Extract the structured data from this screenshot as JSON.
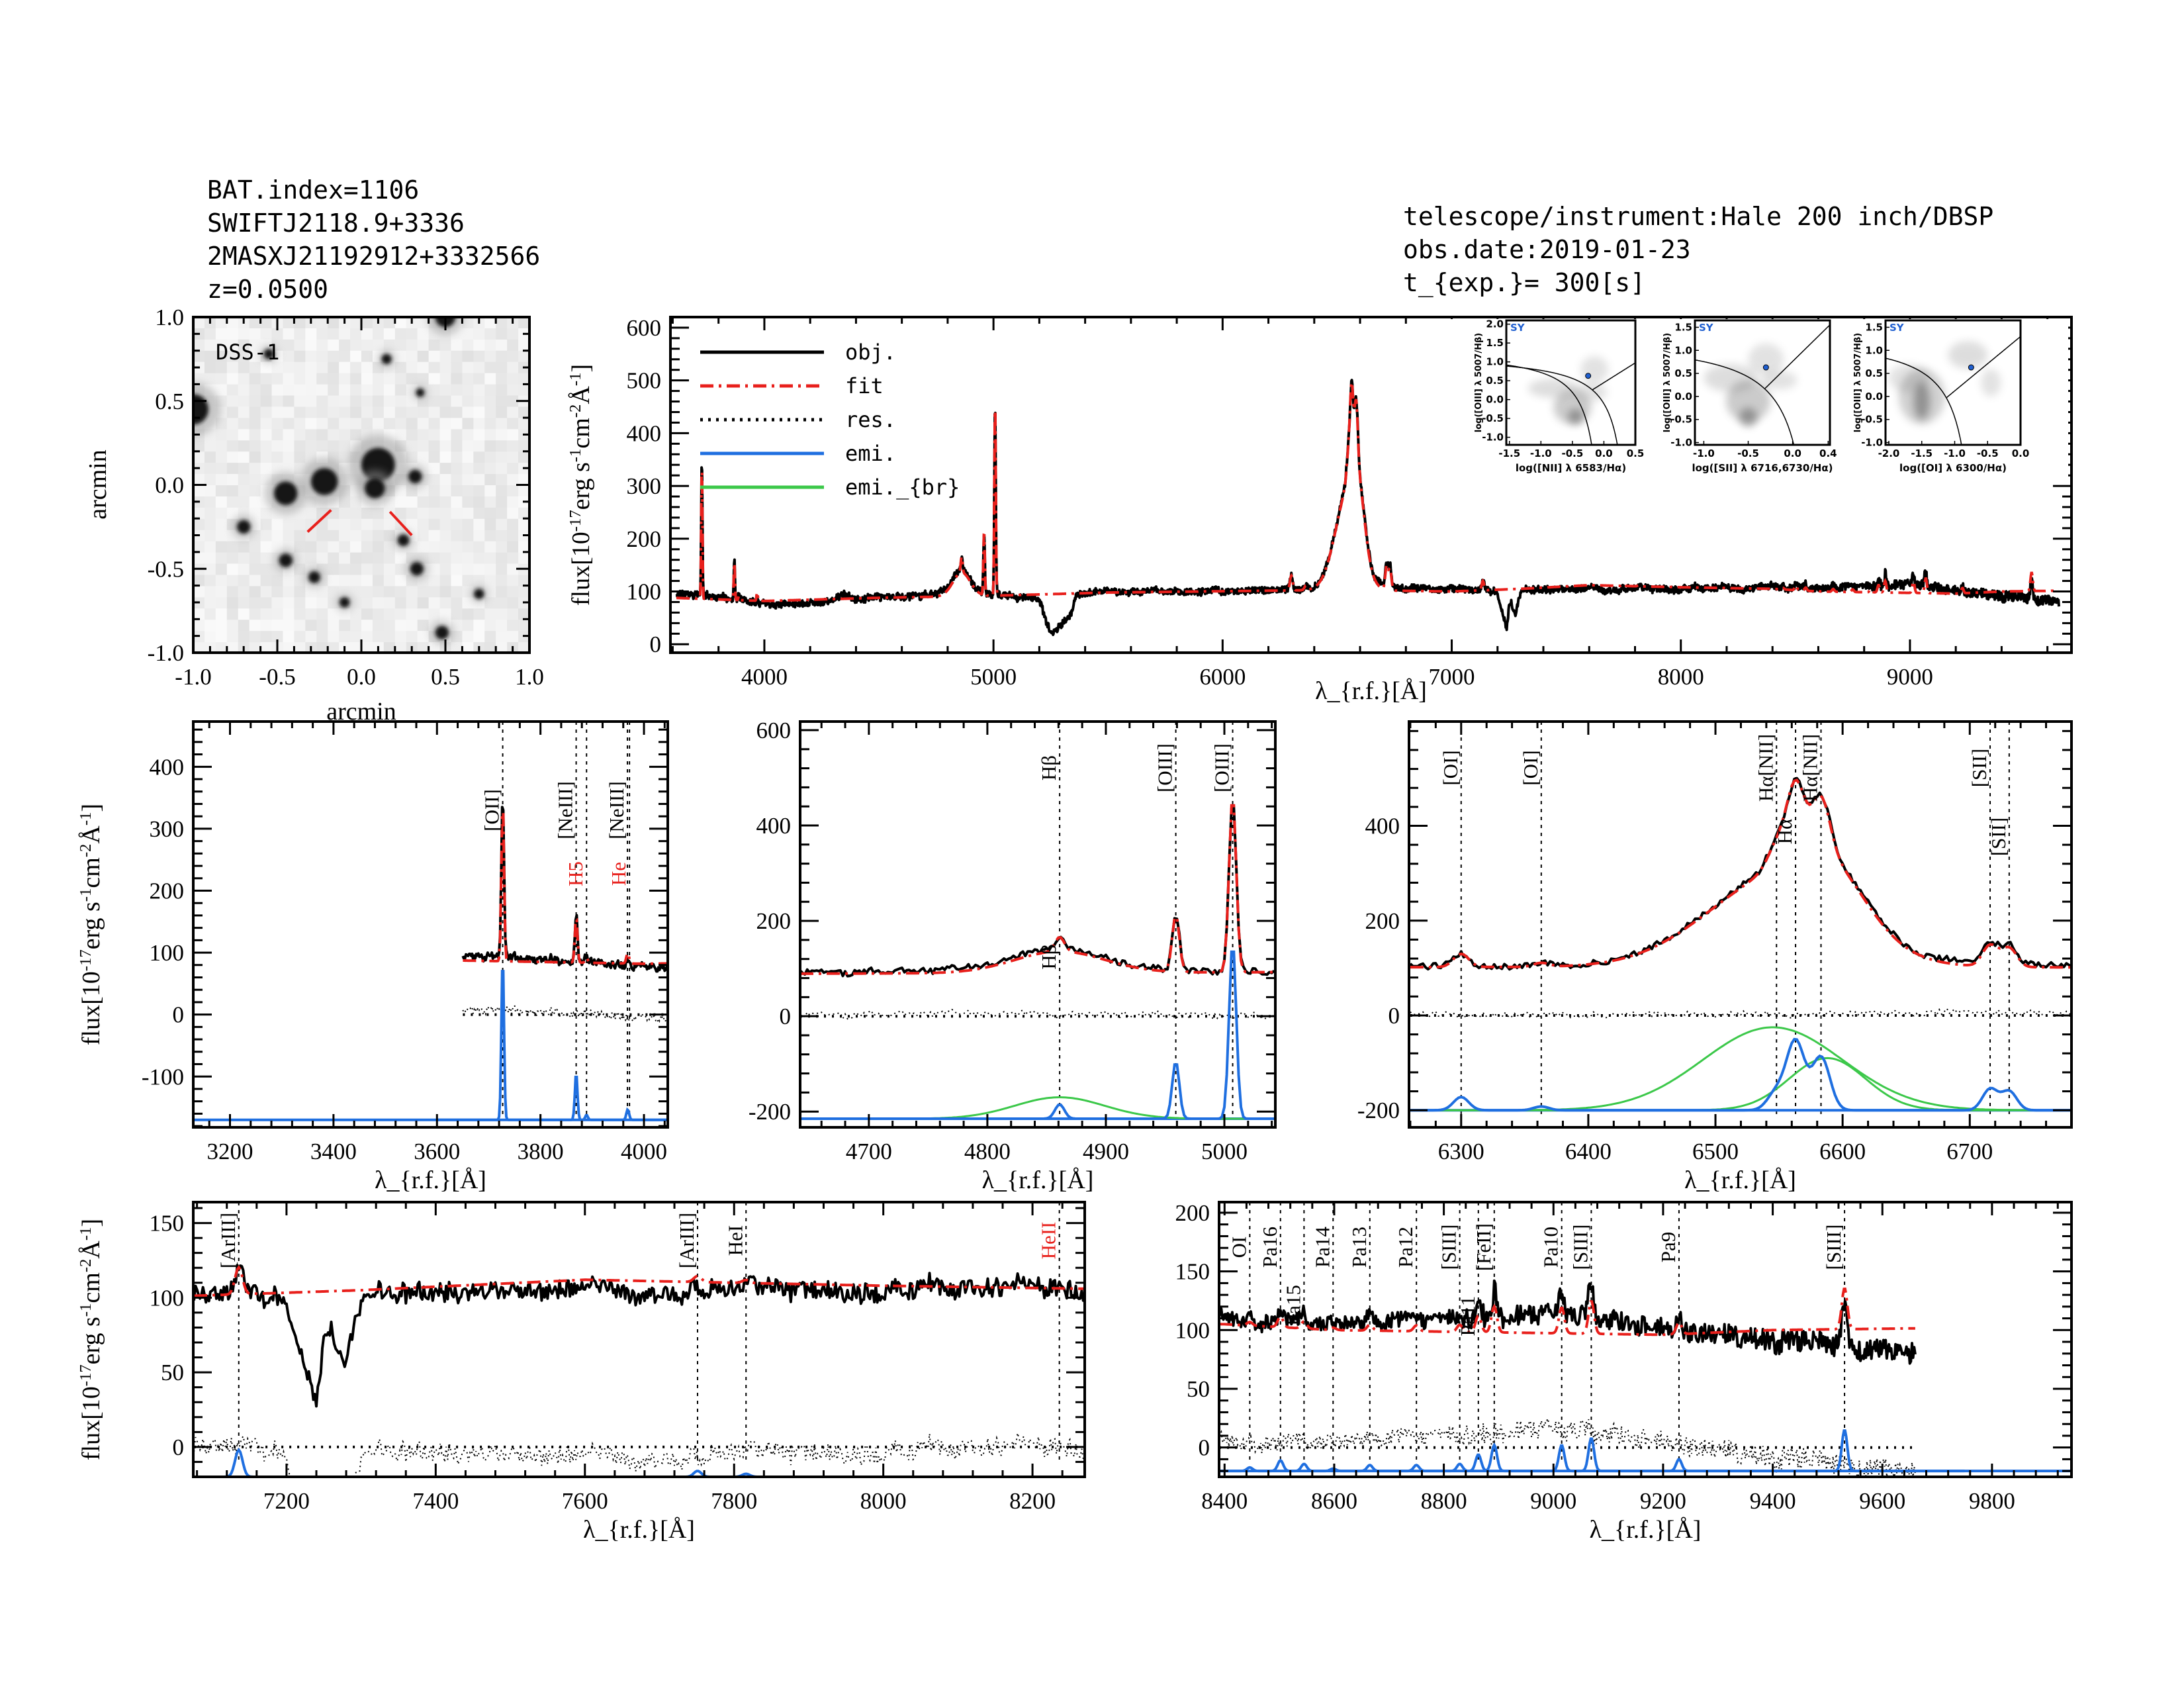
{
  "header": {
    "left": [
      "BAT.index=1106",
      "SWIFTJ2118.9+3336",
      "2MASXJ21192912+3332566",
      "z=0.0500"
    ],
    "right": [
      "telescope/instrument:Hale 200 inch/DBSP",
      "obs.date:2019-01-23",
      "t_{exp.}= 300[s]"
    ]
  },
  "colors": {
    "obj": "#000000",
    "fit": "#e8201c",
    "res": "#000000",
    "emi": "#1f6fe0",
    "emi_br": "#3cc84a",
    "label_red": "#e8201c",
    "bpt_point": "#1f5fd0"
  },
  "legend": [
    {
      "label": "obj.",
      "series": "obj",
      "style": "solid"
    },
    {
      "label": "fit",
      "series": "fit",
      "style": "dash-dot"
    },
    {
      "label": "res.",
      "series": "res",
      "style": "dotted"
    },
    {
      "label": "emi.",
      "series": "emi",
      "style": "solid"
    },
    {
      "label": "emi._{br}",
      "series": "emi_br",
      "style": "solid"
    }
  ],
  "dss": {
    "label": "DSS-1",
    "xlabel": "arcmin",
    "ylabel": "arcmin",
    "xlim": [
      -1.0,
      1.0
    ],
    "ylim": [
      -1.0,
      1.0
    ],
    "ticks": [
      "-1.0",
      "-0.5",
      "0.0",
      "0.5",
      "1.0"
    ],
    "sources": [
      [
        -1.0,
        0.45,
        0.09
      ],
      [
        -0.45,
        -0.05,
        0.07
      ],
      [
        -0.22,
        0.02,
        0.08
      ],
      [
        0.1,
        0.12,
        0.1
      ],
      [
        0.08,
        -0.02,
        0.06
      ],
      [
        0.5,
        1.0,
        0.06
      ],
      [
        -0.7,
        -0.25,
        0.04
      ],
      [
        -0.45,
        -0.45,
        0.04
      ],
      [
        -0.28,
        -0.55,
        0.035
      ],
      [
        0.33,
        -0.5,
        0.04
      ],
      [
        0.25,
        -0.33,
        0.035
      ],
      [
        0.48,
        -0.88,
        0.04
      ],
      [
        0.32,
        0.05,
        0.04
      ],
      [
        0.15,
        0.75,
        0.03
      ],
      [
        -0.55,
        0.78,
        0.03
      ],
      [
        0.7,
        -0.65,
        0.03
      ],
      [
        -0.1,
        -0.7,
        0.03
      ],
      [
        0.35,
        0.55,
        0.025
      ]
    ],
    "markers": [
      [
        [
          -0.32,
          -0.28
        ],
        [
          -0.18,
          -0.15
        ]
      ],
      [
        [
          0.17,
          -0.16
        ],
        [
          0.3,
          -0.3
        ]
      ]
    ]
  },
  "chart_data": {
    "type": "line",
    "continuum_obj": [
      [
        3600,
        95
      ],
      [
        3700,
        95
      ],
      [
        3800,
        90
      ],
      [
        3900,
        85
      ],
      [
        4000,
        80
      ],
      [
        4100,
        78
      ],
      [
        4300,
        82
      ],
      [
        4340,
        95
      ],
      [
        4400,
        85
      ],
      [
        4600,
        90
      ],
      [
        4700,
        95
      ],
      [
        4800,
        95
      ],
      [
        4900,
        95
      ],
      [
        5000,
        93
      ],
      [
        5100,
        90
      ],
      [
        5200,
        88
      ],
      [
        5230,
        40
      ],
      [
        5260,
        20
      ],
      [
        5300,
        40
      ],
      [
        5340,
        55
      ],
      [
        5360,
        95
      ],
      [
        5500,
        100
      ],
      [
        6000,
        100
      ],
      [
        6300,
        103
      ],
      [
        6450,
        106
      ],
      [
        6700,
        106
      ],
      [
        7000,
        106
      ],
      [
        7200,
        100
      ],
      [
        7220,
        60
      ],
      [
        7240,
        30
      ],
      [
        7250,
        70
      ],
      [
        7260,
        80
      ],
      [
        7275,
        55
      ],
      [
        7300,
        100
      ],
      [
        7600,
        105
      ],
      [
        8000,
        105
      ],
      [
        8400,
        108
      ],
      [
        8600,
        105
      ],
      [
        8800,
        110
      ],
      [
        9000,
        112
      ],
      [
        9150,
        105
      ],
      [
        9300,
        98
      ],
      [
        9400,
        90
      ],
      [
        9500,
        88
      ],
      [
        9600,
        85
      ],
      [
        9660,
        80
      ],
      [
        9750,
        80
      ]
    ],
    "continuum_fit": [
      [
        3600,
        88
      ],
      [
        4000,
        82
      ],
      [
        4500,
        88
      ],
      [
        5000,
        92
      ],
      [
        5500,
        98
      ],
      [
        6500,
        103
      ],
      [
        7000,
        100
      ],
      [
        7300,
        105
      ],
      [
        7600,
        112
      ],
      [
        8000,
        108
      ],
      [
        8400,
        105
      ],
      [
        8600,
        100
      ],
      [
        8900,
        98
      ],
      [
        9200,
        96
      ],
      [
        9400,
        100
      ],
      [
        9750,
        102
      ]
    ],
    "lines": [
      {
        "name": "[OII]",
        "wave": 3727,
        "amp": 260,
        "sigma": 2.5
      },
      {
        "name": "[NeIII]",
        "wave": 3869,
        "amp": 75,
        "sigma": 2.5
      },
      {
        "name": "H5",
        "wave": 3889,
        "amp": 8,
        "sigma": 2.5
      },
      {
        "name": "[NeIII]",
        "wave": 3968,
        "amp": 12,
        "sigma": 2.5
      },
      {
        "name": "He",
        "wave": 3970,
        "amp": 6,
        "sigma": 2.5
      },
      {
        "name": "Hβ",
        "wave": 4861,
        "amp": 30,
        "sigma": 4
      },
      {
        "name": "[OIII]",
        "wave": 4959,
        "amp": 120,
        "sigma": 3
      },
      {
        "name": "[OIII]",
        "wave": 5007,
        "amp": 370,
        "sigma": 3
      },
      {
        "name": "[OI]",
        "wave": 6300,
        "amp": 28,
        "sigma": 6
      },
      {
        "name": "[OI]",
        "wave": 6363,
        "amp": 8,
        "sigma": 6
      },
      {
        "name": "[NII]",
        "wave": 6548,
        "amp": 38,
        "sigma": 7
      },
      {
        "name": "Hα",
        "wave": 6563,
        "amp": 145,
        "sigma": 7
      },
      {
        "name": "[NII]",
        "wave": 6583,
        "amp": 112,
        "sigma": 7
      },
      {
        "name": "[SII]",
        "wave": 6716,
        "amp": 45,
        "sigma": 6
      },
      {
        "name": "[SII]",
        "wave": 6731,
        "amp": 40,
        "sigma": 6
      },
      {
        "name": "[ArIII]",
        "wave": 7136,
        "amp": 18,
        "sigma": 5
      },
      {
        "name": "[ArIII]",
        "wave": 7751,
        "amp": 4,
        "sigma": 5
      },
      {
        "name": "HeI",
        "wave": 7816,
        "amp": 2,
        "sigma": 5
      },
      {
        "name": "OI",
        "wave": 8446,
        "amp": 3,
        "sigma": 5
      },
      {
        "name": "Pa16",
        "wave": 8502,
        "amp": 9,
        "sigma": 5
      },
      {
        "name": "Pa15",
        "wave": 8545,
        "amp": 6,
        "sigma": 5
      },
      {
        "name": "Pa14",
        "wave": 8598,
        "amp": 2,
        "sigma": 5
      },
      {
        "name": "Pa13",
        "wave": 8665,
        "amp": 5,
        "sigma": 5
      },
      {
        "name": "Pa12",
        "wave": 8750,
        "amp": 5,
        "sigma": 5
      },
      {
        "name": "[SIII]",
        "wave": 8829,
        "amp": 6,
        "sigma": 5
      },
      {
        "name": "Pa11",
        "wave": 8863,
        "amp": 14,
        "sigma": 5
      },
      {
        "name": "[FeII]",
        "wave": 8892,
        "amp": 22,
        "sigma": 5
      },
      {
        "name": "Pa10",
        "wave": 9015,
        "amp": 22,
        "sigma": 5
      },
      {
        "name": "[SIII]",
        "wave": 9069,
        "amp": 28,
        "sigma": 5
      },
      {
        "name": "Pa9",
        "wave": 9229,
        "amp": 10,
        "sigma": 5
      },
      {
        "name": "[SIII]",
        "wave": 9531,
        "amp": 35,
        "sigma": 5
      }
    ],
    "broad_lines": [
      {
        "name": "Hβ",
        "wave": 4861,
        "amp": 45,
        "sigma": 38
      },
      {
        "name": "Hα",
        "wave": 6545,
        "amp": 175,
        "sigma": 55
      },
      {
        "name": "Hα",
        "wave": 6588,
        "amp": 110,
        "sigma": 30
      }
    ],
    "panels": [
      {
        "id": "overview",
        "xlim": [
          3590,
          9705
        ],
        "ylim": [
          -16,
          620
        ],
        "xticks": [
          4000,
          5000,
          6000,
          7000,
          8000,
          9000
        ],
        "yticks": [
          0,
          100,
          200,
          300,
          400,
          500,
          600
        ],
        "obj_range": [
          3615,
          9650
        ],
        "show_res": false,
        "show_emi": false,
        "xlabel": "λ_{r.f.}[Å]",
        "ylabel": "flux[10^{-17}erg s^{-1}cm^{-2}Å^{-1}]",
        "line_labels": []
      },
      {
        "id": "oii",
        "xlim": [
          3129,
          4046
        ],
        "ylim": [
          -182,
          473
        ],
        "xticks": [
          3200,
          3400,
          3600,
          3800,
          4000
        ],
        "yticks": [
          -100,
          0,
          100,
          200,
          300,
          400
        ],
        "obj_range": [
          3650,
          4046
        ],
        "show_res": true,
        "show_emi": true,
        "emi_offset": -170,
        "xlabel": "λ_{r.f.}[Å]",
        "ylabel": "flux[10^{-17}erg s^{-1}cm^{-2}Å^{-1}]",
        "line_labels": [
          {
            "text": "[OII]",
            "wave": 3727
          },
          {
            "text": "[NeIII]",
            "wave": 3869
          },
          {
            "text": "H5",
            "wave": 3889,
            "red": true
          },
          {
            "text": "[NeIII]",
            "wave": 3968
          },
          {
            "text": "He",
            "wave": 3972,
            "red": true
          }
        ]
      },
      {
        "id": "hbeta",
        "xlim": [
          4642,
          5043
        ],
        "ylim": [
          -233,
          618
        ],
        "xticks": [
          4700,
          4800,
          4900,
          5000
        ],
        "yticks": [
          -200,
          0,
          200,
          400,
          600
        ],
        "obj_range": [
          4642,
          5043
        ],
        "show_res": true,
        "show_emi": true,
        "emi_offset": -215,
        "xlabel": "λ_{r.f.}[Å]",
        "ylabel": "",
        "line_labels": [
          {
            "text": "Hβ",
            "wave": 4861
          },
          {
            "text": "Hβ",
            "wave": 4861,
            "low": true
          },
          {
            "text": "[OIII]",
            "wave": 4959
          },
          {
            "text": "[OIII]",
            "wave": 5007
          }
        ]
      },
      {
        "id": "halpha",
        "xlim": [
          6259,
          6780
        ],
        "ylim": [
          -236,
          620
        ],
        "xticks": [
          6300,
          6400,
          6500,
          6600,
          6700
        ],
        "yticks": [
          -200,
          0,
          200,
          400
        ],
        "obj_range": [
          6259,
          6780
        ],
        "show_res": true,
        "show_emi": true,
        "emi_offset": -200,
        "xlabel": "λ_{r.f.}[Å]",
        "ylabel": "",
        "line_labels": [
          {
            "text": "[OI]",
            "wave": 6300
          },
          {
            "text": "[OI]",
            "wave": 6363
          },
          {
            "text": "Hα[NII]",
            "wave": 6548
          },
          {
            "text": "Hα",
            "wave": 6563
          },
          {
            "text": "Hα[NII]",
            "wave": 6583
          },
          {
            "text": "[SII]",
            "wave": 6716
          },
          {
            "text": "[SII]",
            "wave": 6731
          }
        ]
      },
      {
        "id": "red1",
        "xlim": [
          7075,
          8270
        ],
        "ylim": [
          -20,
          164
        ],
        "xticks": [
          7200,
          7400,
          7600,
          7800,
          8000,
          8200
        ],
        "yticks": [
          0,
          50,
          100,
          150
        ],
        "obj_range": [
          7075,
          8270
        ],
        "show_res": true,
        "show_emi": true,
        "emi_offset": -20,
        "xlabel": "λ_{r.f.}[Å]",
        "ylabel": "flux[10^{-17}erg s^{-1}cm^{-2}Å^{-1}]",
        "line_labels": [
          {
            "text": "[ArIII]",
            "wave": 7136
          },
          {
            "text": "[ArIII]",
            "wave": 7751
          },
          {
            "text": "HeI",
            "wave": 7816
          },
          {
            "text": "HeII",
            "wave": 8236,
            "red": true
          }
        ]
      },
      {
        "id": "red2",
        "xlim": [
          8390,
          9945
        ],
        "ylim": [
          -25,
          209
        ],
        "xticks": [
          8400,
          8600,
          8800,
          9000,
          9200,
          9400,
          9600,
          9800
        ],
        "yticks": [
          0,
          50,
          100,
          150,
          200
        ],
        "obj_range": [
          8390,
          9660
        ],
        "show_res": true,
        "show_emi": true,
        "emi_offset": -20,
        "xlabel": "λ_{r.f.}[Å]",
        "ylabel": "",
        "line_labels": [
          {
            "text": "OI",
            "wave": 8446
          },
          {
            "text": "Pa16",
            "wave": 8502
          },
          {
            "text": "Pa15",
            "wave": 8545
          },
          {
            "text": "Pa14",
            "wave": 8598
          },
          {
            "text": "Pa13",
            "wave": 8665
          },
          {
            "text": "Pa12",
            "wave": 8750
          },
          {
            "text": "[SIII]",
            "wave": 8829
          },
          {
            "text": "Pa11",
            "wave": 8863
          },
          {
            "text": "[FeII]",
            "wave": 8892
          },
          {
            "text": "Pa10",
            "wave": 9015
          },
          {
            "text": "[SIII]",
            "wave": 9069
          },
          {
            "text": "Pa9",
            "wave": 9229
          },
          {
            "text": "[SIII]",
            "wave": 9531
          }
        ]
      }
    ],
    "bpt": [
      {
        "class": "SY",
        "xlabel": "log([NII] λ 6583/Hα)",
        "ylabel": "log([OIII] λ 5007/Hβ)",
        "xlim": [
          -1.55,
          0.5
        ],
        "ylim": [
          -1.2,
          2.1
        ],
        "xticks": [
          -1.5,
          -1.0,
          -0.5,
          0.0,
          0.5
        ],
        "yticks": [
          -1.0,
          -0.5,
          0.0,
          0.5,
          1.0,
          1.5,
          2.0
        ],
        "point": [
          -0.25,
          0.63
        ],
        "density": [
          [
            -0.45,
            -0.45,
            0.12,
            0.2,
            0.9
          ],
          [
            -0.5,
            -0.2,
            0.3,
            0.45,
            0.55
          ],
          [
            -0.8,
            0.3,
            0.4,
            0.25,
            0.35
          ],
          [
            -0.15,
            0.8,
            0.22,
            0.35,
            0.3
          ],
          [
            -0.2,
            0.2,
            0.25,
            0.25,
            0.3
          ]
        ],
        "curves": [
          "kauffmann",
          "kewley_nii",
          "seyfert_nii"
        ]
      },
      {
        "class": "SY",
        "xlabel": "log([SII] λ 6716,6730/Hα)",
        "ylabel": "log([OIII] λ 5007/Hβ)",
        "xlim": [
          -1.1,
          0.42
        ],
        "ylim": [
          -1.05,
          1.65
        ],
        "xticks": [
          -1.0,
          -0.5,
          0.0,
          0.4
        ],
        "yticks": [
          -1.0,
          -0.5,
          0.0,
          0.5,
          1.0,
          1.5
        ],
        "point": [
          -0.3,
          0.63
        ],
        "density": [
          [
            -0.5,
            -0.45,
            0.1,
            0.2,
            0.9
          ],
          [
            -0.5,
            -0.1,
            0.25,
            0.45,
            0.55
          ],
          [
            -0.7,
            0.4,
            0.3,
            0.3,
            0.35
          ],
          [
            -0.3,
            0.8,
            0.2,
            0.35,
            0.3
          ],
          [
            -0.15,
            0.35,
            0.2,
            0.2,
            0.3
          ]
        ],
        "curves": [
          "kewley_sii",
          "seyfert_sii"
        ]
      },
      {
        "class": "SY",
        "xlabel": "log([OI] λ 6300/Hα)",
        "ylabel": "log([OIII] λ 5007/Hβ)",
        "xlim": [
          -2.05,
          0.0
        ],
        "ylim": [
          -1.05,
          1.65
        ],
        "xticks": [
          -2.0,
          -1.5,
          -1.0,
          -0.5,
          0.0
        ],
        "yticks": [
          -1.0,
          -0.5,
          0.0,
          0.5,
          1.0,
          1.5
        ],
        "point": [
          -0.75,
          0.63
        ],
        "density": [
          [
            -1.5,
            -0.1,
            0.12,
            0.4,
            0.9
          ],
          [
            -1.5,
            0.0,
            0.35,
            0.6,
            0.5
          ],
          [
            -0.8,
            0.9,
            0.3,
            0.3,
            0.35
          ],
          [
            -0.45,
            0.3,
            0.15,
            0.3,
            0.3
          ],
          [
            -1.7,
            0.4,
            0.3,
            0.3,
            0.3
          ]
        ],
        "curves": [
          "kewley_oi",
          "seyfert_oi"
        ]
      }
    ]
  }
}
